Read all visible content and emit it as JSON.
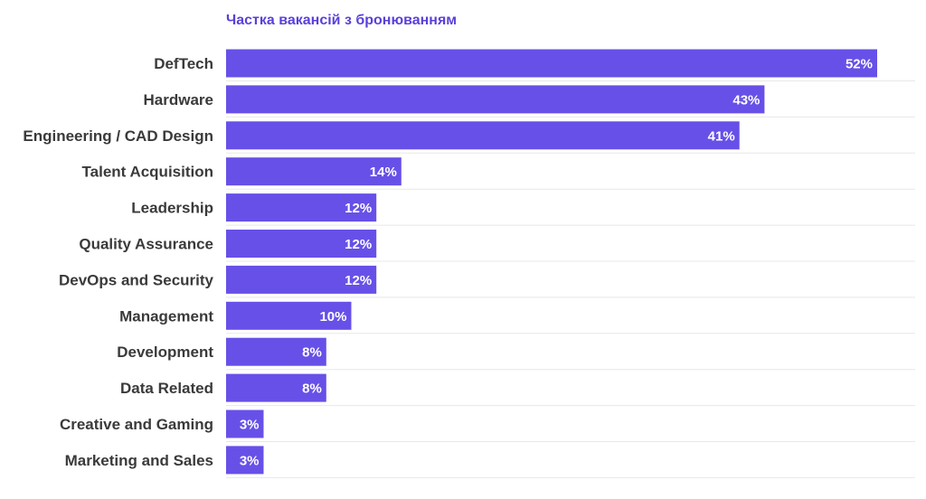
{
  "chart_data": {
    "type": "bar",
    "orientation": "horizontal",
    "title": "Частка вакансій з бронюванням",
    "categories": [
      "DefTech",
      "Hardware",
      "Engineering / CAD Design",
      "Talent Acquisition",
      "Leadership",
      "Quality Assurance",
      "DevOps and Security",
      "Management",
      "Development",
      "Data Related",
      "Creative and Gaming",
      "Marketing and Sales"
    ],
    "values": [
      52,
      43,
      41,
      14,
      12,
      12,
      12,
      10,
      8,
      8,
      3,
      3
    ],
    "value_labels": [
      "52%",
      "43%",
      "41%",
      "14%",
      "12%",
      "12%",
      "12%",
      "10%",
      "8%",
      "8%",
      "3%",
      "3%"
    ],
    "xlim": [
      0,
      52
    ],
    "grid": true,
    "legend": "none"
  },
  "colors": {
    "bar": "#6750e8",
    "title": "#5b3fd9",
    "category_label": "#3a3a3a",
    "value_label": "#ffffff",
    "grid": "#e8e8e8"
  }
}
